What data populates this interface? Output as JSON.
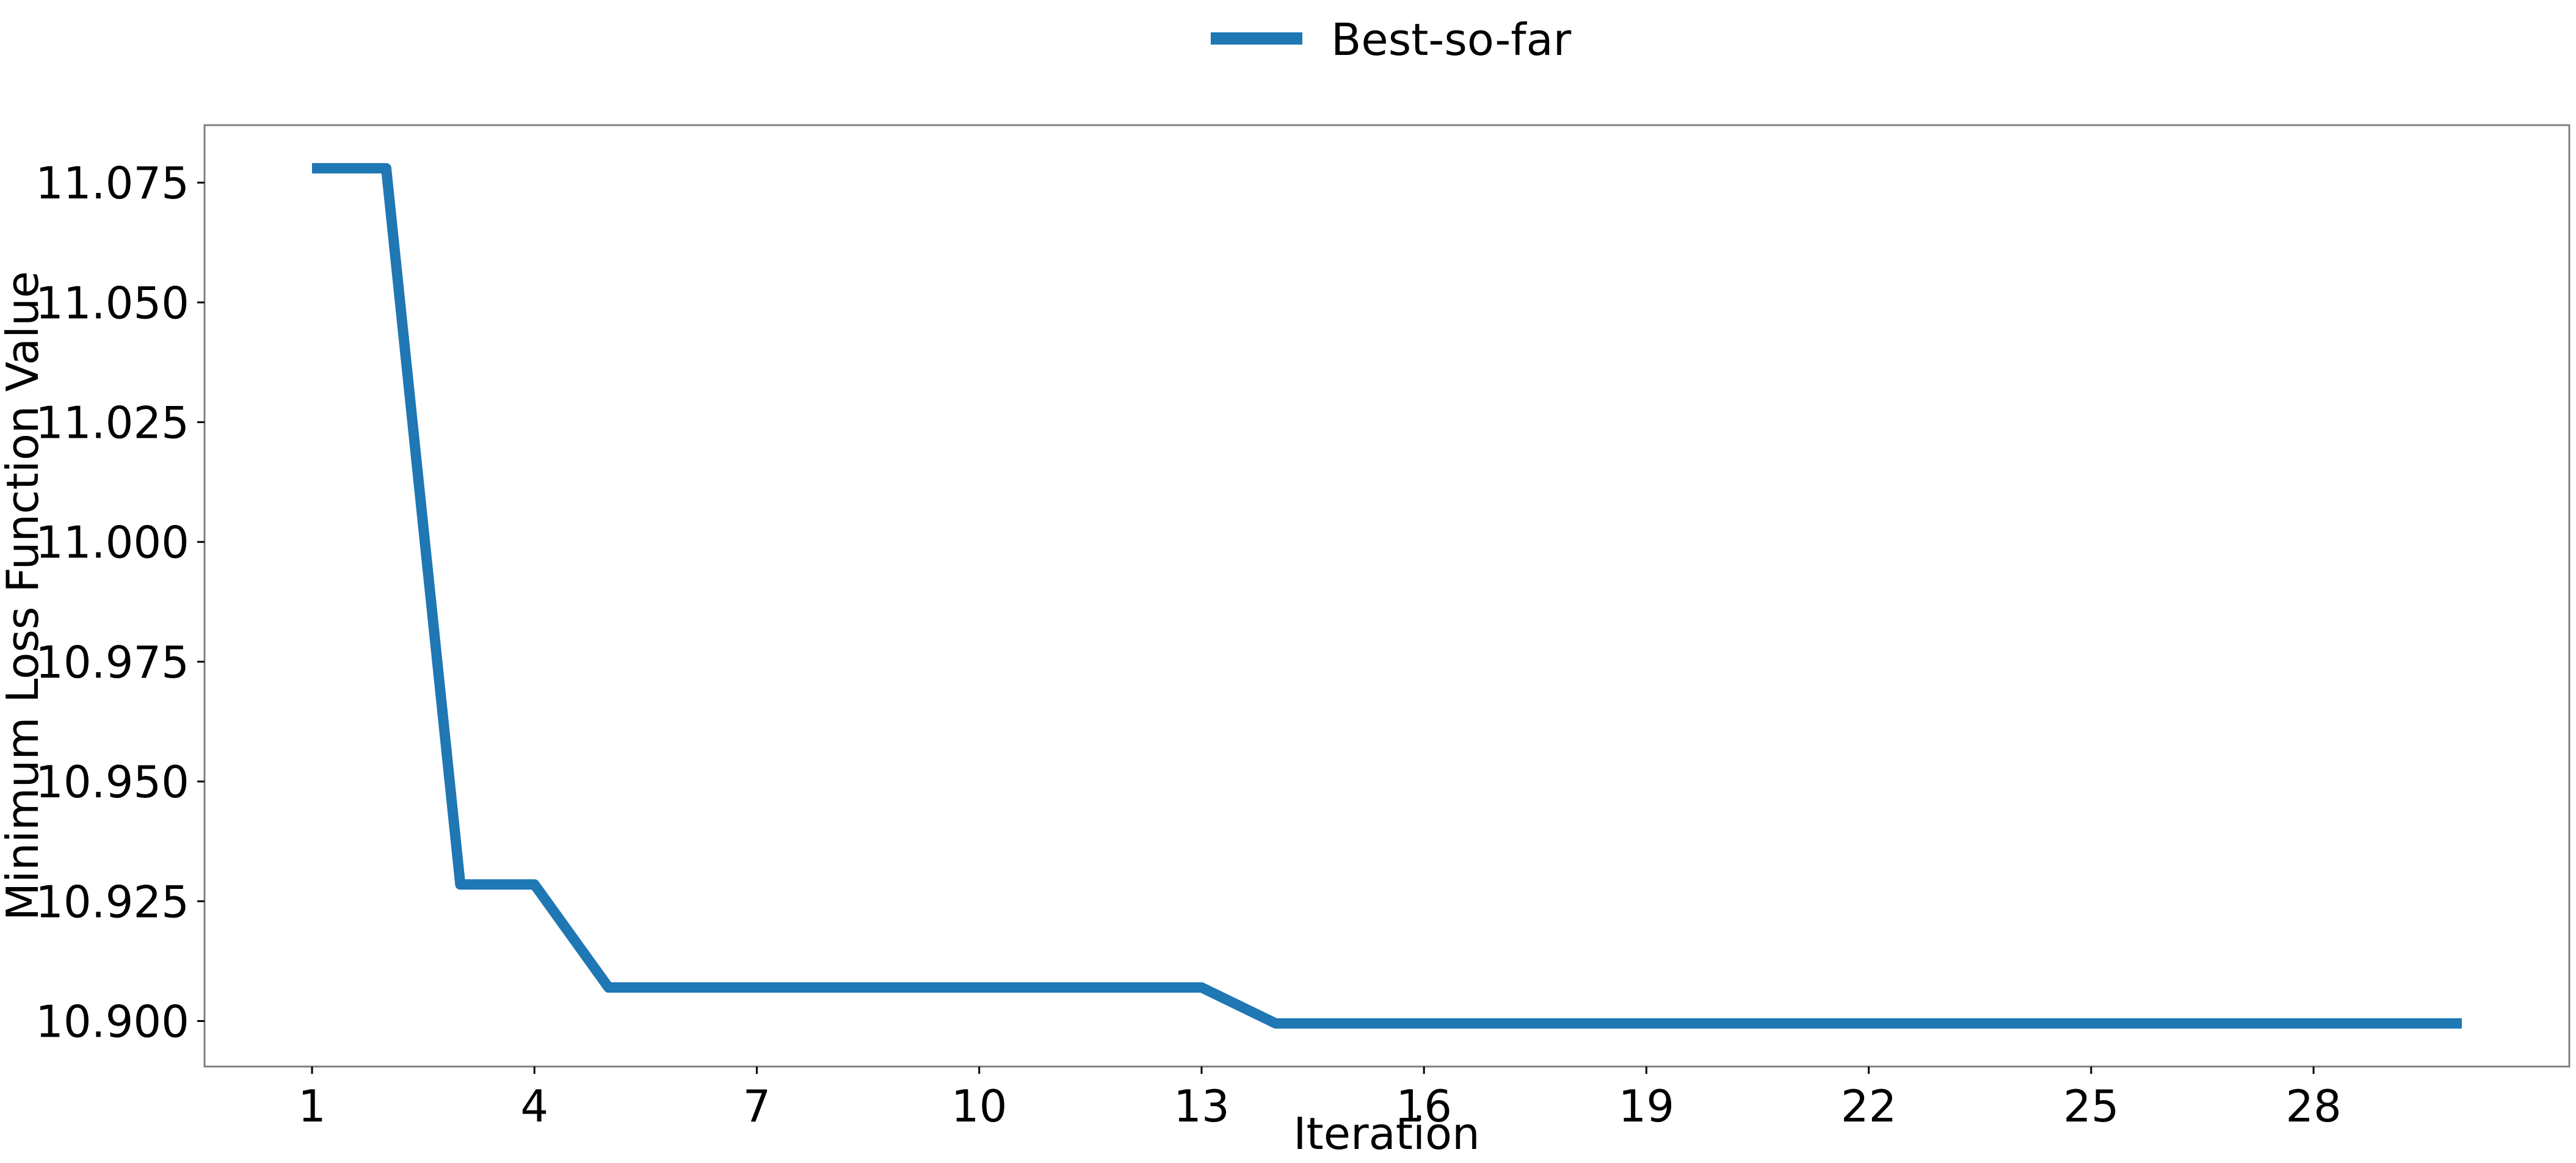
{
  "chart_data": {
    "type": "line",
    "title": "",
    "xlabel": "Iteration",
    "ylabel": "Minimum Loss Function Value",
    "x": [
      1,
      2,
      3,
      4,
      5,
      6,
      7,
      8,
      9,
      10,
      11,
      12,
      13,
      14,
      15,
      16,
      17,
      18,
      19,
      20,
      21,
      22,
      23,
      24,
      25,
      26,
      27,
      28,
      29,
      30
    ],
    "series": [
      {
        "name": "Best-so-far",
        "color": "#1f77b4",
        "values": [
          11.078,
          11.078,
          10.9285,
          10.9285,
          10.907,
          10.907,
          10.907,
          10.907,
          10.907,
          10.907,
          10.907,
          10.907,
          10.907,
          10.8995,
          10.8995,
          10.8995,
          10.8995,
          10.8995,
          10.8995,
          10.8995,
          10.8995,
          10.8995,
          10.8995,
          10.8995,
          10.8995,
          10.8995,
          10.8995,
          10.8995,
          10.8995,
          10.8995
        ]
      }
    ],
    "xticks": [
      1,
      4,
      7,
      10,
      13,
      16,
      19,
      22,
      25,
      28
    ],
    "xtick_labels": [
      "1",
      "4",
      "7",
      "10",
      "13",
      "16",
      "19",
      "22",
      "25",
      "28"
    ],
    "yticks": [
      10.9,
      10.925,
      10.95,
      10.975,
      11.0,
      11.025,
      11.05,
      11.075
    ],
    "ytick_labels": [
      "10.900",
      "10.925",
      "10.950",
      "10.975",
      "11.000",
      "11.025",
      "11.050",
      "11.075"
    ],
    "xlim": [
      -0.45,
      31.45
    ],
    "ylim": [
      10.8905,
      11.087
    ],
    "grid": false,
    "legend_position": "top-center"
  }
}
